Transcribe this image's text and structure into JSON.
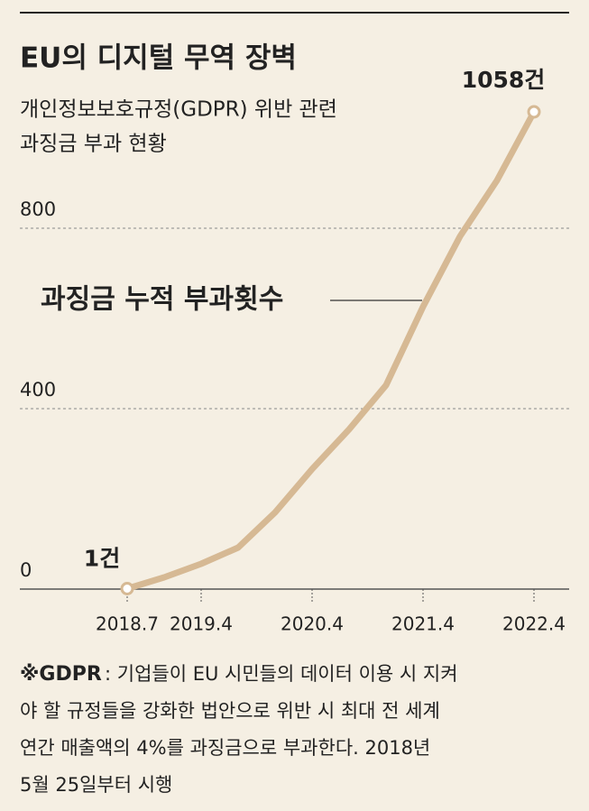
{
  "chart_data": {
    "type": "line",
    "title": "EU의 디지털 무역 장벽",
    "subtitle": [
      "개인정보보호규정(GDPR) 위반 관련",
      "과징금 부과 현황"
    ],
    "categories": [
      "2018.7",
      null,
      "2019.4",
      null,
      null,
      "2020.4",
      null,
      null,
      "2021.4",
      null,
      null,
      "2022.4"
    ],
    "series": [
      {
        "name": "과징금 누적 부과횟수",
        "color": "#d6b994",
        "values": [
          1,
          26,
          56,
          92,
          170,
          266,
          354,
          452,
          626,
          782,
          906,
          1058
        ],
        "value_labels": [
          "1건",
          null,
          null,
          null,
          null,
          null,
          null,
          null,
          null,
          null,
          null,
          "1058건"
        ]
      }
    ],
    "ylim": [
      0,
      1100
    ],
    "yticks": [
      0,
      400,
      800
    ],
    "grid": true,
    "footnote": {
      "term": "※GDPR",
      "lines": [
        ": 기업들이 EU 시민들의 데이터 이용 시 지켜",
        "야 할 규정들을 강화한 법안으로 위반 시 최대 전 세계",
        "연간 매출액의 4%를 과징금으로 부과한다. 2018년",
        "5월 25일부터 시행"
      ]
    }
  }
}
